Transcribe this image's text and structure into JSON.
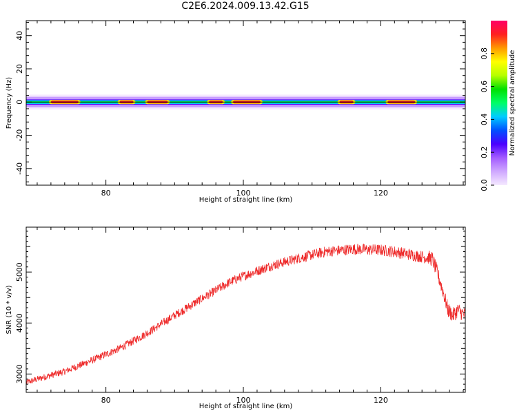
{
  "title": "C2E6.2024.009.13.42.G15",
  "colors": {
    "snr_line": "#ee2b2b",
    "colormap": [
      "#f5e9ff",
      "#cfa8ff",
      "#a35cff",
      "#4a00ff",
      "#0050ff",
      "#00ccff",
      "#00ff66",
      "#00e000",
      "#b6ff00",
      "#ffff00",
      "#ff9900",
      "#ff2020",
      "#ff0066"
    ]
  },
  "chart_data": [
    {
      "type": "heatmap",
      "xlabel": "Height of straight line (km)",
      "ylabel": "Frequency (Hz)",
      "colorbar_label": "Normalized spectral amplitude",
      "xlim": [
        68.4,
        132.3
      ],
      "ylim": [
        -50,
        49
      ],
      "xticks": [
        80,
        100,
        120
      ],
      "yticks": [
        40,
        20,
        0,
        -20,
        -40
      ],
      "colorbar_ticks": [
        "0.0",
        "0.2",
        "0.4",
        "0.6",
        "0.8"
      ],
      "colorbar_range": [
        0,
        1
      ],
      "band_center_hz": 0,
      "band_halfwidth_hz": 3,
      "peak_segments_km": [
        [
          72,
          76
        ],
        [
          82,
          84
        ],
        [
          86,
          89
        ],
        [
          95,
          97
        ],
        [
          98.5,
          102.5
        ],
        [
          114,
          116
        ],
        [
          121,
          125
        ]
      ]
    },
    {
      "type": "line",
      "xlabel": "Height of straight line (km)",
      "ylabel": "SNR (10 * v/v)",
      "xlim": [
        68.4,
        132.3
      ],
      "ylim": [
        2640,
        5880
      ],
      "xticks": [
        80,
        100,
        120
      ],
      "yticks": [
        5000,
        4000,
        3000
      ],
      "series": [
        {
          "x": [
            68.4,
            70,
            74,
            78,
            82,
            86,
            90,
            94,
            98,
            100,
            104,
            108,
            112,
            116,
            120,
            122,
            124,
            126,
            127.5,
            128.2,
            129,
            129.8,
            130.5,
            131.2,
            132.3
          ],
          "y": [
            2830,
            2900,
            3050,
            3270,
            3500,
            3800,
            4150,
            4480,
            4800,
            4920,
            5120,
            5270,
            5400,
            5450,
            5430,
            5400,
            5350,
            5300,
            5260,
            5000,
            4650,
            4250,
            4150,
            4250,
            4150
          ]
        }
      ]
    }
  ]
}
